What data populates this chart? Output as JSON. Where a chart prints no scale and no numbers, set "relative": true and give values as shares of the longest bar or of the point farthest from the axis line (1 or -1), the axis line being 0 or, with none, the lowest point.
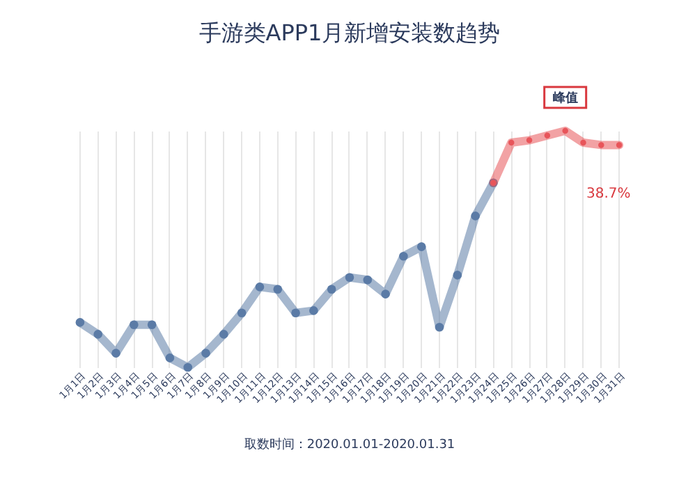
{
  "chart_data": {
    "type": "line",
    "title": "手游类APP1月新增安装数趋势",
    "relative": true,
    "categories": [
      "1月1日",
      "1月2日",
      "1月3日",
      "1月4日",
      "1月5日",
      "1月6日",
      "1月7日",
      "1月8日",
      "1月9日",
      "1月10日",
      "1月11日",
      "1月12日",
      "1月13日",
      "1月14日",
      "1月15日",
      "1月16日",
      "1月17日",
      "1月18日",
      "1月19日",
      "1月20日",
      "1月21日",
      "1月22日",
      "1月23日",
      "1月24日",
      "1月25日",
      "1月26日",
      "1月27日",
      "1月28日",
      "1月29日",
      "1月30日",
      "1月31日"
    ],
    "series": [
      {
        "color": "#5b7ba6",
        "values": [
          0.19,
          0.14,
          0.06,
          0.18,
          0.18,
          0.04,
          0,
          0.06,
          0.14,
          0.23,
          0.34,
          0.33,
          0.23,
          0.24,
          0.33,
          0.38,
          0.37,
          0.31,
          0.47,
          0.51,
          0.17,
          0.39,
          0.64,
          0.78,
          null,
          null,
          null,
          null,
          null,
          null,
          null
        ]
      },
      {
        "color": "#e8555a",
        "values": [
          null,
          null,
          null,
          null,
          null,
          null,
          null,
          null,
          null,
          null,
          null,
          null,
          null,
          null,
          null,
          null,
          null,
          null,
          null,
          null,
          null,
          null,
          null,
          0.78,
          0.95,
          0.96,
          0.98,
          1,
          0.95,
          0.94,
          0.94
        ]
      }
    ],
    "annotations": [
      {
        "text": "峰值",
        "x": "1月28日",
        "y": 1
      },
      "38.7%",
      "取数时间：2020.01.01-2020.01.31"
    ],
    "grid": "x",
    "marker": "circle",
    "line_style": "solid",
    "tick_labels": "x"
  }
}
